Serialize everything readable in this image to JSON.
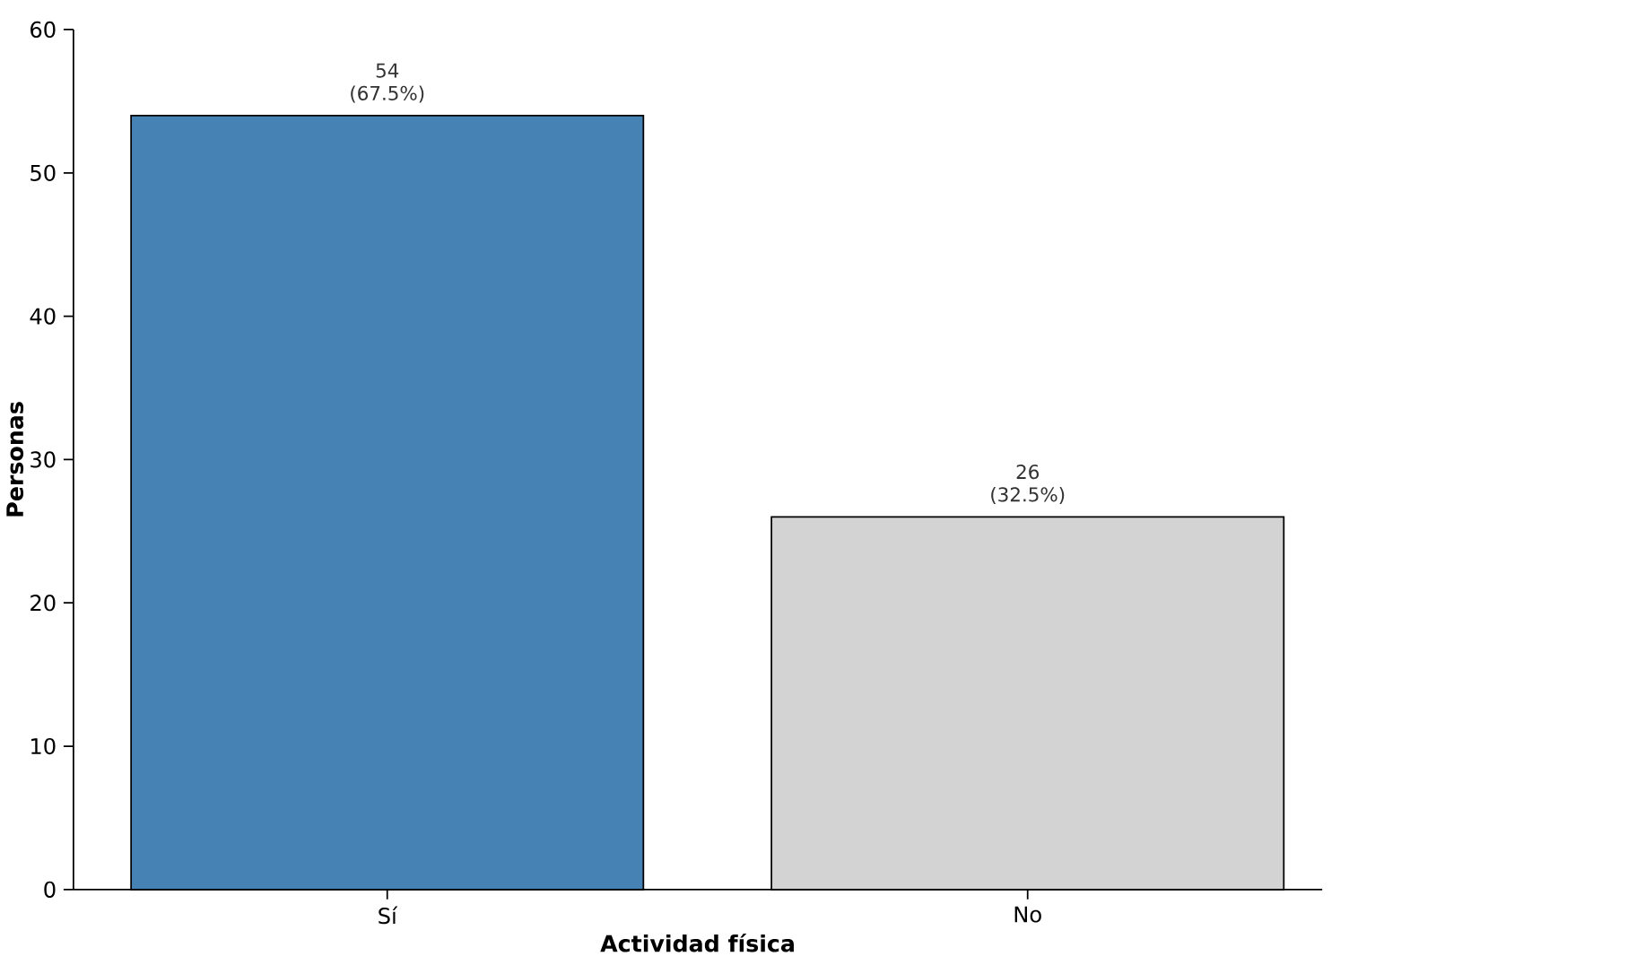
{
  "chart_data": {
    "type": "bar",
    "xlabel": "Actividad física",
    "ylabel": "Personas",
    "categories": [
      "Sí",
      "No"
    ],
    "values": [
      54,
      26
    ],
    "colors": [
      "#4682b4",
      "#d3d3d3"
    ],
    "value_labels": [
      "54 (67.5%)",
      "26 (32.5%)"
    ],
    "ylim": [
      0,
      60
    ],
    "yticks": [
      0,
      10,
      20,
      30,
      40,
      50,
      60
    ]
  }
}
